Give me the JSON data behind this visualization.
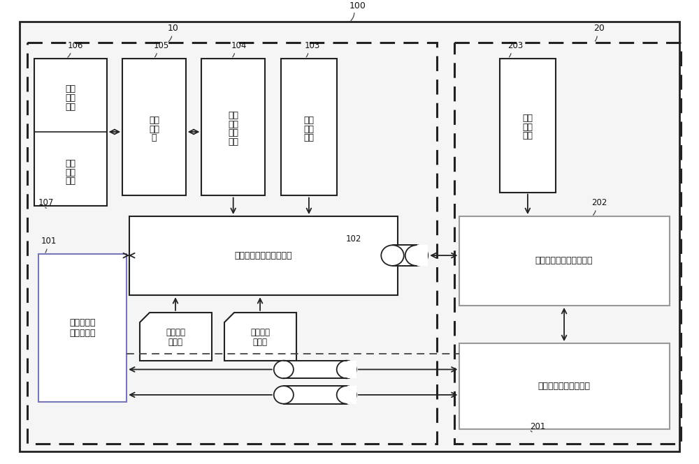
{
  "fig_width": 10.0,
  "fig_height": 6.65,
  "bg_color": "#ffffff",
  "label_100": "100",
  "label_10": "10",
  "label_20": "20",
  "label_101": "101",
  "label_102": "102",
  "label_103": "103",
  "label_104": "104",
  "label_105": "105",
  "label_106": "106",
  "label_107": "107",
  "label_201": "201",
  "label_202": "202",
  "label_203": "203",
  "text_106a": "语音",
  "text_106b": "输入",
  "text_106c": "模块",
  "text_107a": "语音",
  "text_107b": "输出",
  "text_107c": "模块",
  "text_105a": "编解",
  "text_105b": "码模",
  "text_105c": "块",
  "text_104a": "数字",
  "text_104b": "信号",
  "text_104c": "处理",
  "text_104d": "模块",
  "text_103a": "第一",
  "text_103b": "射频",
  "text_103c": "模块",
  "text_modem1": "第一调制解调器处理模块",
  "text_101a": "第一应用程",
  "text_101b": "序处理模块",
  "text_sim1a": "第一用户",
  "text_sim1b": "识别卡",
  "text_sim2a": "第二用户",
  "text_sim2b": "识别卡",
  "text_203a": "第二",
  "text_203b": "射频",
  "text_203c": "模块",
  "text_modem2": "第二调制解调器处理模块",
  "text_201": "第二应用程序处理模块"
}
